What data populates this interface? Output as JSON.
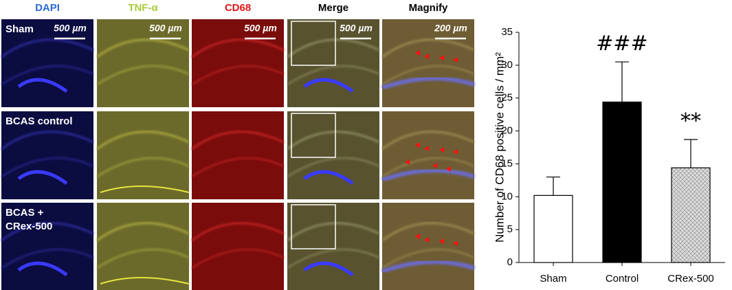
{
  "panels": {
    "columns": [
      {
        "label": "DAPI",
        "color": "#2a6ad0"
      },
      {
        "label": "TNF-α",
        "color": "#a8cc3c"
      },
      {
        "label": "CD68",
        "color": "#e01818"
      },
      {
        "label": "Merge",
        "color": "#000000"
      },
      {
        "label": "Magnify",
        "color": "#000000"
      }
    ],
    "rows": [
      [
        "Sham"
      ],
      [
        "BCAS control"
      ],
      [
        "BCAS +",
        "CRex-500"
      ]
    ],
    "scale_bars": [
      "500 µm",
      "500 µm",
      "500 µm",
      "500 µm",
      "200 µm"
    ]
  },
  "chart_data": {
    "type": "bar",
    "categories": [
      "Sham",
      "Control",
      "CRex-500"
    ],
    "values": [
      10.2,
      24.4,
      14.4
    ],
    "errors": [
      2.8,
      6.1,
      4.3
    ],
    "colors": [
      "#ffffff",
      "#000000",
      "#dcdcdc"
    ],
    "y_label": "Number of CD68 positive cells / mm²",
    "ylim": [
      0,
      35
    ],
    "yticks": [
      0,
      5,
      10,
      15,
      20,
      25,
      30,
      35
    ],
    "annotations": [
      {
        "text": "###",
        "x": "Control"
      },
      {
        "text": "**",
        "x": "CRex-500"
      }
    ]
  }
}
